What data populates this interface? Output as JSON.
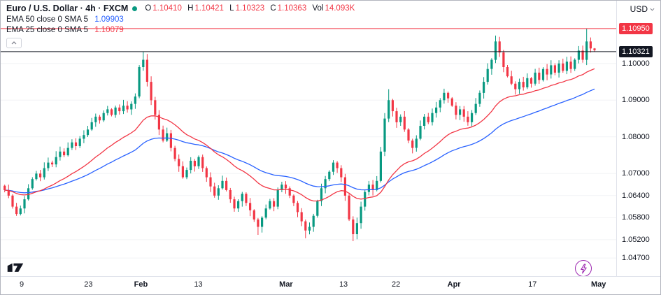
{
  "legend": {
    "title": "Euro / U.S. Dollar · 4h · FXCM",
    "status_dot_color": "#089981",
    "ohlc": {
      "o_label": "O",
      "o": "1.10410",
      "h_label": "H",
      "h": "1.10421",
      "l_label": "L",
      "l": "1.10323",
      "c_label": "C",
      "c": "1.10363",
      "vol_label": "Vol",
      "vol": "14.093K",
      "value_color": "#f23645"
    },
    "indicators": [
      {
        "label": "EMA 50 close 0 SMA 5",
        "value": "1.09903",
        "color": "#2962ff"
      },
      {
        "label": "EMA 25 close 0 SMA 5",
        "value": "1.10079",
        "color": "#f23645"
      }
    ]
  },
  "axis": {
    "currency": "USD",
    "price_ticks": [
      {
        "label": "1.10000",
        "price": 1.1
      },
      {
        "label": "1.09000",
        "price": 1.09
      },
      {
        "label": "1.08000",
        "price": 1.08
      },
      {
        "label": "1.07000",
        "price": 1.07
      },
      {
        "label": "1.06400",
        "price": 1.064
      },
      {
        "label": "1.05800",
        "price": 1.058
      },
      {
        "label": "1.05200",
        "price": 1.052
      },
      {
        "label": "1.04700",
        "price": 1.047
      }
    ],
    "badges": [
      {
        "label": "1.10950",
        "price": 1.1095,
        "bg": "#f23645"
      },
      {
        "label": "1.10321",
        "price": 1.10321,
        "bg": "#131722"
      }
    ],
    "time_labels": [
      {
        "label": "9",
        "f": 0.034,
        "type": "day"
      },
      {
        "label": "23",
        "f": 0.142,
        "type": "day"
      },
      {
        "label": "Feb",
        "f": 0.227,
        "type": "month"
      },
      {
        "label": "13",
        "f": 0.32,
        "type": "day"
      },
      {
        "label": "Mar",
        "f": 0.462,
        "type": "month"
      },
      {
        "label": "13",
        "f": 0.555,
        "type": "day"
      },
      {
        "label": "22",
        "f": 0.64,
        "type": "day"
      },
      {
        "label": "Apr",
        "f": 0.734,
        "type": "month"
      },
      {
        "label": "17",
        "f": 0.861,
        "type": "day"
      },
      {
        "label": "May",
        "f": 0.968,
        "type": "month"
      }
    ]
  },
  "chart_data": {
    "type": "candlestick",
    "title": "Euro / U.S. Dollar",
    "interval": "4h",
    "exchange": "FXCM",
    "last_candle": {
      "open": 1.1041,
      "high": 1.10421,
      "low": 1.10323,
      "close": 1.10363,
      "volume": "14.093K"
    },
    "ema50_value": 1.09903,
    "ema25_value": 1.10079,
    "up_color": "#089981",
    "down_color": "#f23645",
    "ema50_color": "#2962ff",
    "ema25_color": "#f23645",
    "ylim": [
      1.0415,
      1.1171
    ],
    "x_range": [
      "Jan 6",
      "May 1"
    ],
    "closes": [
      1.0655,
      1.064,
      1.061,
      1.059,
      1.0605,
      1.063,
      1.066,
      1.0685,
      1.07,
      1.069,
      1.0715,
      1.073,
      1.0725,
      1.0745,
      1.076,
      1.075,
      1.077,
      1.0785,
      1.0775,
      1.0795,
      1.0805,
      1.082,
      1.084,
      1.0855,
      1.0845,
      1.0865,
      1.0875,
      1.086,
      1.088,
      1.087,
      1.0885,
      1.0875,
      1.089,
      1.091,
      1.099,
      1.101,
      1.095,
      1.09,
      1.086,
      1.082,
      1.079,
      1.081,
      1.077,
      1.074,
      1.072,
      1.069,
      1.071,
      1.0735,
      1.072,
      1.0745,
      1.0715,
      1.069,
      1.0665,
      1.064,
      1.066,
      1.068,
      1.0655,
      1.063,
      1.0605,
      1.0625,
      1.0645,
      1.062,
      1.06,
      1.0575,
      1.0555,
      1.058,
      1.0605,
      1.0625,
      1.061,
      1.0655,
      1.067,
      1.066,
      1.064,
      1.062,
      1.0595,
      1.057,
      1.0545,
      1.0555,
      1.0585,
      1.0625,
      1.066,
      1.0685,
      1.0705,
      1.073,
      1.0715,
      1.069,
      1.064,
      1.0575,
      1.0535,
      1.0565,
      1.061,
      1.065,
      1.067,
      1.0655,
      1.068,
      1.076,
      1.085,
      1.09,
      1.087,
      1.084,
      1.0855,
      1.082,
      1.079,
      1.077,
      1.0795,
      1.083,
      1.0855,
      1.084,
      1.0865,
      1.088,
      1.09,
      1.092,
      1.0905,
      1.0885,
      1.086,
      1.0875,
      1.0855,
      1.084,
      1.0865,
      1.089,
      1.092,
      1.095,
      1.0985,
      1.101,
      1.106,
      1.103,
      1.099,
      1.0965,
      1.0945,
      1.093,
      1.095,
      1.0935,
      1.096,
      1.0945,
      1.0975,
      1.0955,
      1.0985,
      1.097,
      1.0995,
      1.0975,
      1.1,
      1.098,
      1.1005,
      1.0985,
      1.101,
      1.1035,
      1.101,
      1.106,
      1.1041,
      1.10363
    ],
    "overrides": {
      "35": {
        "h": 1.1033
      },
      "64": {
        "l": 1.0533
      },
      "76": {
        "l": 1.0524
      },
      "88": {
        "l": 1.0516
      },
      "97": {
        "h": 1.093
      },
      "124": {
        "h": 1.1076
      },
      "147": {
        "h": 1.1095
      },
      "149": {
        "o": 1.1041,
        "h": 1.10421,
        "l": 1.10323,
        "c": 1.10363
      }
    },
    "levels": [
      {
        "price": 1.1095,
        "color": "#f23645"
      },
      {
        "price": 1.10321,
        "color": "#131722"
      }
    ]
  }
}
